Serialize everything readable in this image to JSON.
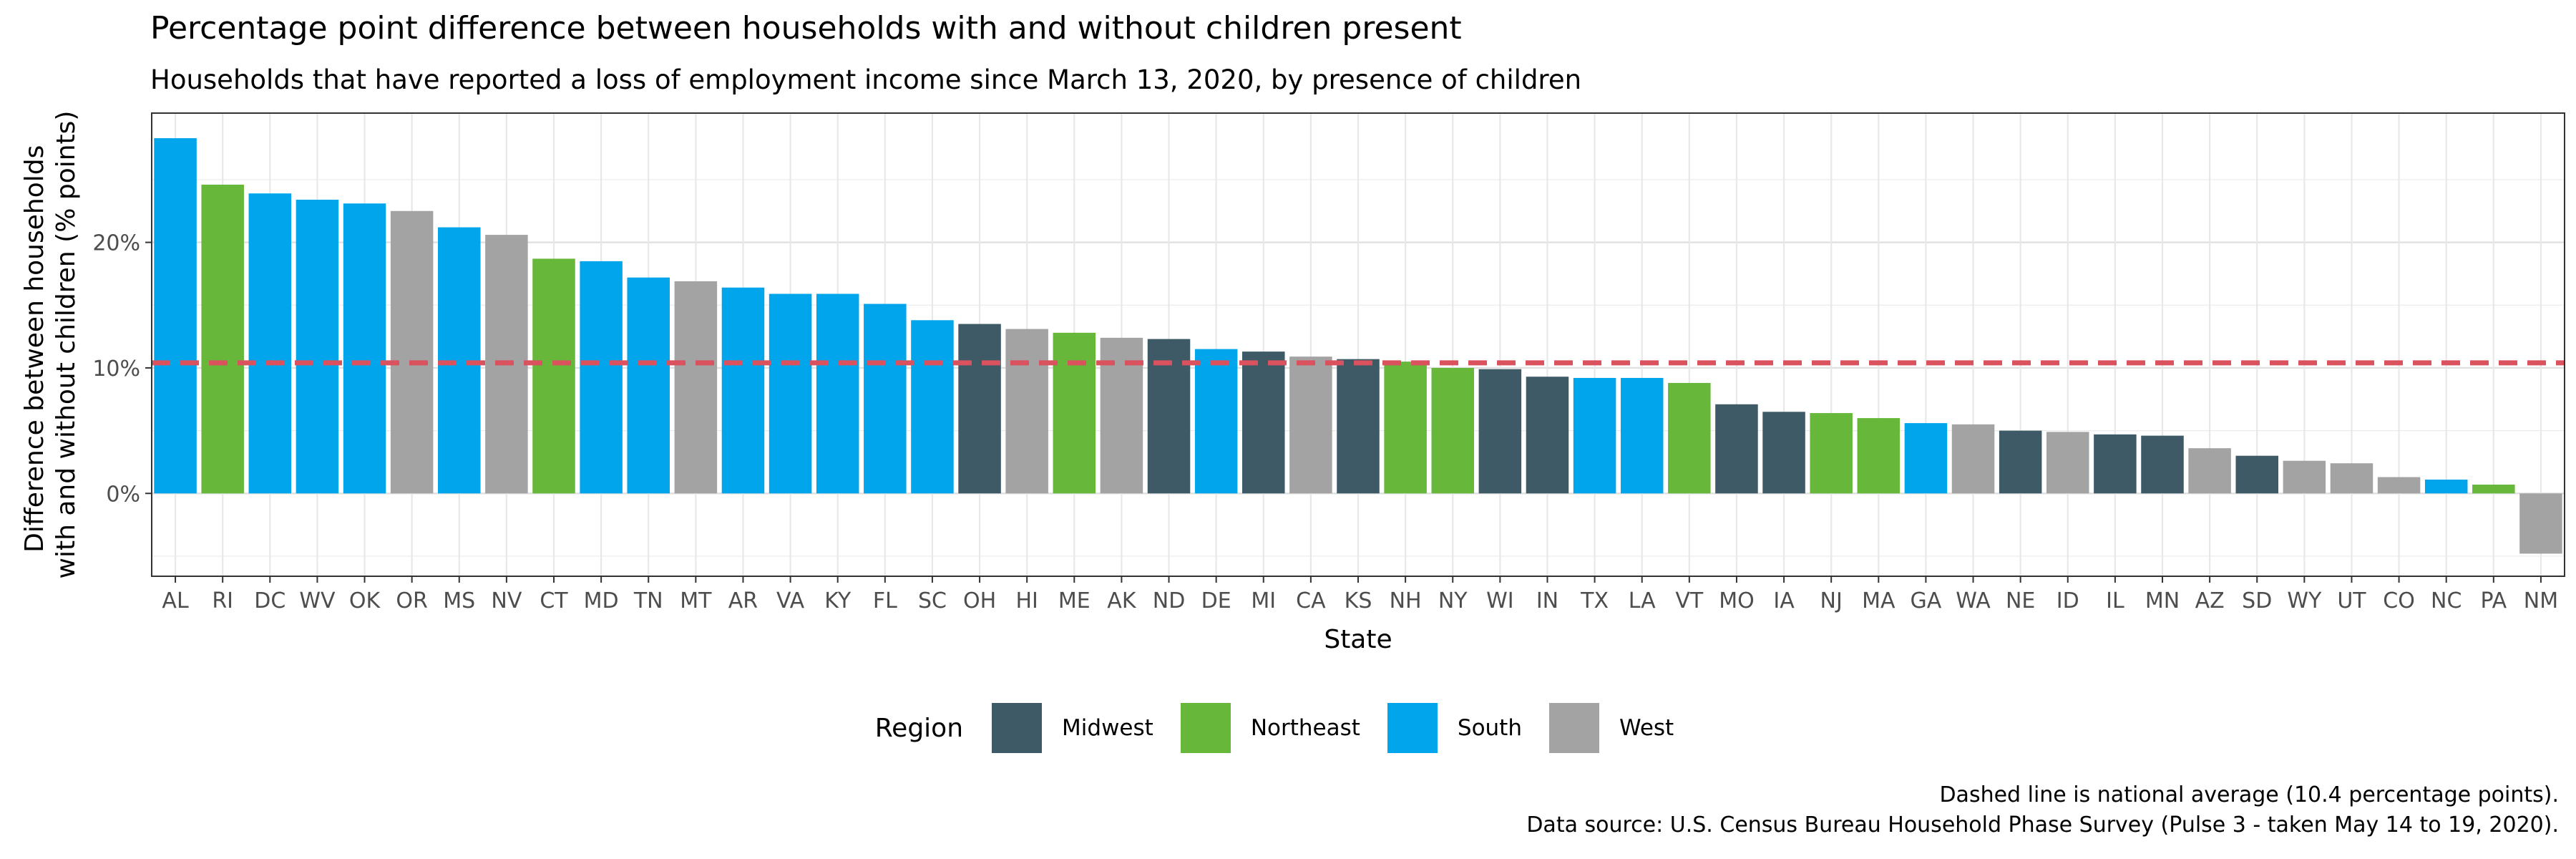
{
  "chart_data": {
    "type": "bar",
    "title": "Percentage point difference between households with and without children present",
    "subtitle": "Households that have reported a loss of employment income since March 13, 2020, by presence of children",
    "xlabel": "State",
    "ylabel_lines": [
      "Difference between households",
      "with and without children (% points)"
    ],
    "ylim": [
      -6.6,
      30.3
    ],
    "yticks": [
      0,
      10,
      20
    ],
    "ytick_labels": [
      "0%",
      "10%",
      "20%"
    ],
    "grid": true,
    "reference_line": {
      "value": 10.4,
      "style": "dashed",
      "color": "#D9525E"
    },
    "categories": [
      "AL",
      "RI",
      "DC",
      "WV",
      "OK",
      "OR",
      "MS",
      "NV",
      "CT",
      "MD",
      "TN",
      "MT",
      "AR",
      "VA",
      "KY",
      "FL",
      "SC",
      "OH",
      "HI",
      "ME",
      "AK",
      "ND",
      "DE",
      "MI",
      "CA",
      "KS",
      "NH",
      "NY",
      "WI",
      "IN",
      "TX",
      "LA",
      "VT",
      "MO",
      "IA",
      "NJ",
      "MA",
      "GA",
      "WA",
      "NE",
      "ID",
      "IL",
      "MN",
      "AZ",
      "SD",
      "WY",
      "UT",
      "CO",
      "NC",
      "PA",
      "NM"
    ],
    "values": [
      28.3,
      24.6,
      23.9,
      23.4,
      23.1,
      22.5,
      21.2,
      20.6,
      18.7,
      18.5,
      17.2,
      16.9,
      16.4,
      15.9,
      15.9,
      15.1,
      13.8,
      13.5,
      13.1,
      12.8,
      12.4,
      12.3,
      11.5,
      11.3,
      10.9,
      10.7,
      10.5,
      10.0,
      9.9,
      9.3,
      9.2,
      9.2,
      8.8,
      7.1,
      6.5,
      6.4,
      6.0,
      5.6,
      5.5,
      5.0,
      4.9,
      4.7,
      4.6,
      3.6,
      3.0,
      2.6,
      2.4,
      1.3,
      1.1,
      0.7,
      -4.8
    ],
    "regions": [
      "South",
      "Northeast",
      "South",
      "South",
      "South",
      "West",
      "South",
      "West",
      "Northeast",
      "South",
      "South",
      "West",
      "South",
      "South",
      "South",
      "South",
      "South",
      "Midwest",
      "West",
      "Northeast",
      "West",
      "Midwest",
      "South",
      "Midwest",
      "West",
      "Midwest",
      "Northeast",
      "Northeast",
      "Midwest",
      "Midwest",
      "South",
      "South",
      "Northeast",
      "Midwest",
      "Midwest",
      "Northeast",
      "Northeast",
      "South",
      "West",
      "Midwest",
      "West",
      "Midwest",
      "Midwest",
      "West",
      "Midwest",
      "West",
      "West",
      "West",
      "South",
      "Northeast",
      "West"
    ],
    "legend": {
      "title": "Region",
      "placement": "bottom",
      "items": [
        {
          "name": "Midwest",
          "color": "#3D5A66"
        },
        {
          "name": "Northeast",
          "color": "#67B73B"
        },
        {
          "name": "South",
          "color": "#00A5EC"
        },
        {
          "name": "West",
          "color": "#A3A3A3"
        }
      ]
    },
    "caption_lines": [
      "Dashed line is national average (10.4 percentage points).",
      "Data source: U.S. Census Bureau Household Phase Survey (Pulse 3 - taken May 14 to 19, 2020)."
    ]
  }
}
